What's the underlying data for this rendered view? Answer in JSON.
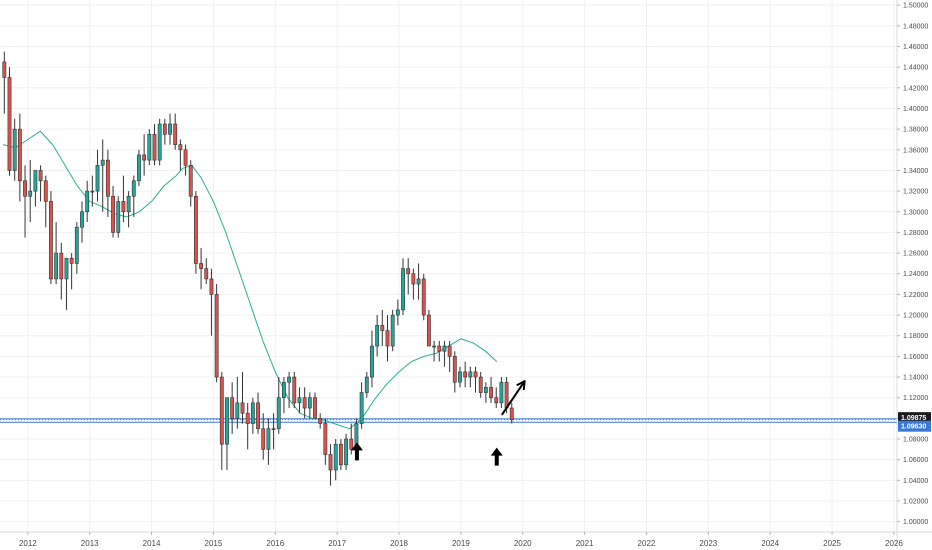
{
  "chart_data": {
    "type": "candlestick",
    "y_axis": {
      "range": [
        0.99,
        1.505
      ],
      "ticks": [
        "1.50000",
        "1.48000",
        "1.46000",
        "1.44000",
        "1.42000",
        "1.40000",
        "1.38000",
        "1.36000",
        "1.34000",
        "1.32000",
        "1.30000",
        "1.28000",
        "1.26000",
        "1.24000",
        "1.22000",
        "1.20000",
        "1.18000",
        "1.16000",
        "1.14000",
        "1.12000",
        "1.10000",
        "1.08000",
        "1.06000",
        "1.04000",
        "1.02000",
        "1.00000"
      ],
      "tick_values": [
        1.5,
        1.48,
        1.46,
        1.44,
        1.42,
        1.4,
        1.38,
        1.36,
        1.34,
        1.32,
        1.3,
        1.28,
        1.26,
        1.24,
        1.22,
        1.2,
        1.18,
        1.16,
        1.14,
        1.12,
        1.1,
        1.08,
        1.06,
        1.04,
        1.02,
        1.0
      ],
      "side": "right"
    },
    "x_axis": {
      "range": [
        2011.55,
        2026.05
      ],
      "ticks": [
        "2012",
        "2013",
        "2014",
        "2015",
        "2016",
        "2017",
        "2018",
        "2019",
        "2020",
        "2021",
        "2022",
        "2023",
        "2024",
        "2025",
        "2026"
      ],
      "tick_values": [
        2012,
        2013,
        2014,
        2015,
        2016,
        2017,
        2018,
        2019,
        2020,
        2021,
        2022,
        2023,
        2024,
        2025,
        2026
      ]
    },
    "grid": true,
    "up_color": "#26a69a",
    "down_color": "#d9534f",
    "candle_border": "#333333",
    "ma_color": "#2bb08f",
    "last_price": {
      "value": 1.09875,
      "label": "1.09875",
      "bg": "#1a1a1a",
      "fg": "#ffffff"
    },
    "second_price": {
      "value": 1.0963,
      "label": "1.09630",
      "bg": "#3a78d8",
      "fg": "#ffffff"
    },
    "horizontal_lines": [
      {
        "value": 1.0995,
        "color": "#3a78d8"
      },
      {
        "value": 1.0963,
        "color": "#3a78d8"
      }
    ],
    "candles_ohlc": [
      [
        1.445,
        1.455,
        1.395,
        1.43
      ],
      [
        1.43,
        1.44,
        1.335,
        1.34
      ],
      [
        1.34,
        1.39,
        1.33,
        1.38
      ],
      [
        1.38,
        1.395,
        1.31,
        1.33
      ],
      [
        1.33,
        1.345,
        1.275,
        1.315
      ],
      [
        1.315,
        1.35,
        1.29,
        1.32
      ],
      [
        1.32,
        1.34,
        1.305,
        1.34
      ],
      [
        1.34,
        1.345,
        1.31,
        1.33
      ],
      [
        1.33,
        1.335,
        1.285,
        1.31
      ],
      [
        1.31,
        1.32,
        1.23,
        1.235
      ],
      [
        1.235,
        1.29,
        1.23,
        1.26
      ],
      [
        1.26,
        1.27,
        1.215,
        1.235
      ],
      [
        1.235,
        1.255,
        1.205,
        1.255
      ],
      [
        1.255,
        1.26,
        1.225,
        1.25
      ],
      [
        1.25,
        1.29,
        1.24,
        1.285
      ],
      [
        1.285,
        1.31,
        1.27,
        1.3
      ],
      [
        1.3,
        1.33,
        1.29,
        1.32
      ],
      [
        1.32,
        1.335,
        1.305,
        1.32
      ],
      [
        1.32,
        1.36,
        1.31,
        1.345
      ],
      [
        1.345,
        1.37,
        1.3,
        1.35
      ],
      [
        1.35,
        1.36,
        1.295,
        1.315
      ],
      [
        1.315,
        1.325,
        1.275,
        1.28
      ],
      [
        1.28,
        1.315,
        1.275,
        1.31
      ],
      [
        1.31,
        1.335,
        1.29,
        1.3
      ],
      [
        1.3,
        1.32,
        1.285,
        1.315
      ],
      [
        1.315,
        1.335,
        1.295,
        1.33
      ],
      [
        1.33,
        1.36,
        1.325,
        1.355
      ],
      [
        1.355,
        1.375,
        1.335,
        1.35
      ],
      [
        1.35,
        1.38,
        1.345,
        1.375
      ],
      [
        1.375,
        1.385,
        1.345,
        1.35
      ],
      [
        1.35,
        1.39,
        1.345,
        1.385
      ],
      [
        1.385,
        1.39,
        1.365,
        1.375
      ],
      [
        1.375,
        1.395,
        1.365,
        1.385
      ],
      [
        1.385,
        1.395,
        1.36,
        1.365
      ],
      [
        1.365,
        1.37,
        1.34,
        1.36
      ],
      [
        1.36,
        1.365,
        1.335,
        1.345
      ],
      [
        1.345,
        1.35,
        1.305,
        1.315
      ],
      [
        1.315,
        1.32,
        1.24,
        1.25
      ],
      [
        1.25,
        1.265,
        1.225,
        1.245
      ],
      [
        1.245,
        1.255,
        1.23,
        1.235
      ],
      [
        1.235,
        1.245,
        1.18,
        1.22
      ],
      [
        1.22,
        1.23,
        1.135,
        1.14
      ],
      [
        1.14,
        1.145,
        1.05,
        1.075
      ],
      [
        1.075,
        1.115,
        1.05,
        1.12
      ],
      [
        1.12,
        1.135,
        1.085,
        1.1
      ],
      [
        1.1,
        1.14,
        1.09,
        1.115
      ],
      [
        1.115,
        1.145,
        1.095,
        1.105
      ],
      [
        1.105,
        1.115,
        1.07,
        1.095
      ],
      [
        1.095,
        1.12,
        1.085,
        1.115
      ],
      [
        1.115,
        1.125,
        1.085,
        1.09
      ],
      [
        1.09,
        1.105,
        1.06,
        1.07
      ],
      [
        1.07,
        1.1,
        1.055,
        1.09
      ],
      [
        1.09,
        1.105,
        1.07,
        1.09
      ],
      [
        1.09,
        1.14,
        1.085,
        1.12
      ],
      [
        1.12,
        1.14,
        1.105,
        1.135
      ],
      [
        1.135,
        1.145,
        1.11,
        1.14
      ],
      [
        1.14,
        1.145,
        1.11,
        1.115
      ],
      [
        1.115,
        1.13,
        1.105,
        1.12
      ],
      [
        1.12,
        1.13,
        1.1,
        1.11
      ],
      [
        1.11,
        1.125,
        1.1,
        1.12
      ],
      [
        1.12,
        1.125,
        1.1,
        1.1
      ],
      [
        1.1,
        1.105,
        1.09,
        1.095
      ],
      [
        1.095,
        1.1,
        1.055,
        1.065
      ],
      [
        1.065,
        1.075,
        1.035,
        1.05
      ],
      [
        1.05,
        1.08,
        1.04,
        1.075
      ],
      [
        1.075,
        1.08,
        1.05,
        1.055
      ],
      [
        1.055,
        1.085,
        1.05,
        1.08
      ],
      [
        1.08,
        1.095,
        1.065,
        1.07
      ],
      [
        1.07,
        1.1,
        1.065,
        1.095
      ],
      [
        1.095,
        1.135,
        1.09,
        1.125
      ],
      [
        1.125,
        1.145,
        1.12,
        1.14
      ],
      [
        1.14,
        1.185,
        1.13,
        1.17
      ],
      [
        1.17,
        1.2,
        1.16,
        1.19
      ],
      [
        1.19,
        1.205,
        1.17,
        1.185
      ],
      [
        1.185,
        1.2,
        1.155,
        1.17
      ],
      [
        1.17,
        1.205,
        1.165,
        1.2
      ],
      [
        1.2,
        1.215,
        1.19,
        1.205
      ],
      [
        1.205,
        1.255,
        1.2,
        1.245
      ],
      [
        1.245,
        1.255,
        1.22,
        1.24
      ],
      [
        1.24,
        1.245,
        1.215,
        1.23
      ],
      [
        1.23,
        1.25,
        1.215,
        1.235
      ],
      [
        1.235,
        1.24,
        1.195,
        1.2
      ],
      [
        1.2,
        1.205,
        1.17,
        1.17
      ],
      [
        1.17,
        1.175,
        1.155,
        1.17
      ],
      [
        1.17,
        1.175,
        1.155,
        1.165
      ],
      [
        1.165,
        1.175,
        1.15,
        1.17
      ],
      [
        1.17,
        1.175,
        1.145,
        1.16
      ],
      [
        1.16,
        1.165,
        1.125,
        1.135
      ],
      [
        1.135,
        1.15,
        1.13,
        1.145
      ],
      [
        1.145,
        1.155,
        1.13,
        1.14
      ],
      [
        1.14,
        1.15,
        1.13,
        1.145
      ],
      [
        1.145,
        1.15,
        1.125,
        1.14
      ],
      [
        1.14,
        1.145,
        1.12,
        1.125
      ],
      [
        1.125,
        1.135,
        1.115,
        1.13
      ],
      [
        1.13,
        1.14,
        1.115,
        1.12
      ],
      [
        1.12,
        1.13,
        1.11,
        1.115
      ],
      [
        1.115,
        1.14,
        1.11,
        1.135
      ],
      [
        1.135,
        1.14,
        1.105,
        1.11
      ],
      [
        1.11,
        1.115,
        1.095,
        1.0988
      ]
    ],
    "candle_start": 2011.62,
    "candle_step": 0.0837,
    "moving_average": [
      [
        2011.6,
        1.365
      ],
      [
        2011.8,
        1.362
      ],
      [
        2012.0,
        1.37
      ],
      [
        2012.2,
        1.378
      ],
      [
        2012.4,
        1.365
      ],
      [
        2012.6,
        1.345
      ],
      [
        2012.8,
        1.325
      ],
      [
        2013.0,
        1.31
      ],
      [
        2013.2,
        1.305
      ],
      [
        2013.4,
        1.298
      ],
      [
        2013.6,
        1.295
      ],
      [
        2013.8,
        1.3
      ],
      [
        2014.0,
        1.31
      ],
      [
        2014.2,
        1.325
      ],
      [
        2014.4,
        1.335
      ],
      [
        2014.5,
        1.342
      ],
      [
        2014.65,
        1.345
      ],
      [
        2014.8,
        1.333
      ],
      [
        2015.0,
        1.31
      ],
      [
        2015.2,
        1.28
      ],
      [
        2015.4,
        1.245
      ],
      [
        2015.6,
        1.21
      ],
      [
        2015.8,
        1.175
      ],
      [
        2016.0,
        1.145
      ],
      [
        2016.2,
        1.12
      ],
      [
        2016.4,
        1.105
      ],
      [
        2016.6,
        1.1
      ],
      [
        2016.8,
        1.098
      ],
      [
        2017.0,
        1.094
      ],
      [
        2017.2,
        1.09
      ],
      [
        2017.4,
        1.1
      ],
      [
        2017.6,
        1.118
      ],
      [
        2017.8,
        1.133
      ],
      [
        2018.0,
        1.145
      ],
      [
        2018.2,
        1.155
      ],
      [
        2018.4,
        1.16
      ],
      [
        2018.6,
        1.163
      ],
      [
        2018.8,
        1.17
      ],
      [
        2019.0,
        1.177
      ],
      [
        2019.2,
        1.173
      ],
      [
        2019.4,
        1.165
      ],
      [
        2019.58,
        1.155
      ]
    ],
    "annotations": [
      {
        "type": "up-arrow",
        "x": 2017.32,
        "y": 1.068
      },
      {
        "type": "up-arrow",
        "x": 2019.58,
        "y": 1.063
      },
      {
        "type": "diagonal-arrow",
        "x1": 2019.67,
        "y1": 1.104,
        "x2": 2020.03,
        "y2": 1.136
      }
    ]
  }
}
